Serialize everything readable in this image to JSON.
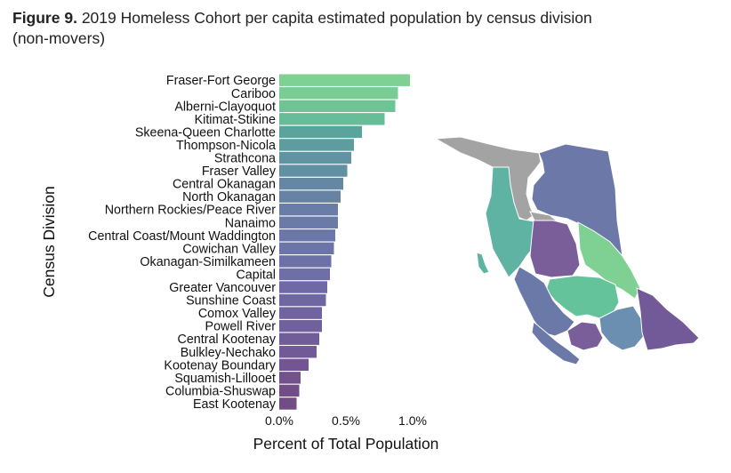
{
  "figure": {
    "label": "Figure 9.",
    "title": "2019 Homeless Cohort per capita estimated population by census division (non-movers)"
  },
  "chart_data": {
    "type": "bar",
    "orientation": "horizontal",
    "categories": [
      "Fraser-Fort George",
      "Cariboo",
      "Alberni-Clayoquot",
      "Kitimat-Stikine",
      "Skeena-Queen Charlotte",
      "Thompson-Nicola",
      "Strathcona",
      "Fraser Valley",
      "Central Okanagan",
      "North Okanagan",
      "Northern Rockies/Peace River",
      "Nanaimo",
      "Central Coast/Mount Waddington",
      "Cowichan Valley",
      "Okanagan-Similkameen",
      "Capital",
      "Greater Vancouver",
      "Sunshine Coast",
      "Comox Valley",
      "Powell River",
      "Central Kootenay",
      "Bulkley-Nechako",
      "Kootenay Boundary",
      "Squamish-Lillooet",
      "Columbia-Shuswap",
      "East Kootenay"
    ],
    "values": [
      0.98,
      0.89,
      0.87,
      0.79,
      0.62,
      0.56,
      0.54,
      0.51,
      0.48,
      0.46,
      0.44,
      0.44,
      0.42,
      0.41,
      0.39,
      0.38,
      0.36,
      0.35,
      0.32,
      0.32,
      0.3,
      0.28,
      0.22,
      0.16,
      0.15,
      0.13
    ],
    "colors": [
      "#7ed192",
      "#79cc94",
      "#6fc496",
      "#67bd98",
      "#5aa49d",
      "#5e9ca0",
      "#6094a2",
      "#6190a3",
      "#6487a4",
      "#6683a6",
      "#6a7da8",
      "#6a7ba8",
      "#6b77a8",
      "#6c75a8",
      "#6c71a7",
      "#6d6fa6",
      "#6f6aa4",
      "#6f67a2",
      "#70639f",
      "#70619d",
      "#715d9a",
      "#715a97",
      "#725592",
      "#72518c",
      "#724e88",
      "#724c85"
    ],
    "xlabel": "Percent of Total Population",
    "ylabel": "Census Division",
    "xlim": [
      0,
      1.15
    ],
    "xticks": [
      0,
      0.5,
      1.0
    ],
    "xtick_labels": [
      "0.0%",
      "0.5%",
      "1.0%"
    ],
    "grid": false,
    "legend": "none"
  },
  "map": {
    "colors": {
      "no_data": "#a3a3a3",
      "north_east": "#6b78a8",
      "north_west": "#5fb3a3",
      "central": "#7a5e9a",
      "cariboo": "#7ed192",
      "thompson": "#65c39c",
      "south_east": "#715a97",
      "okanagan": "#6b8fb0",
      "coast": "#6a79a8"
    }
  }
}
